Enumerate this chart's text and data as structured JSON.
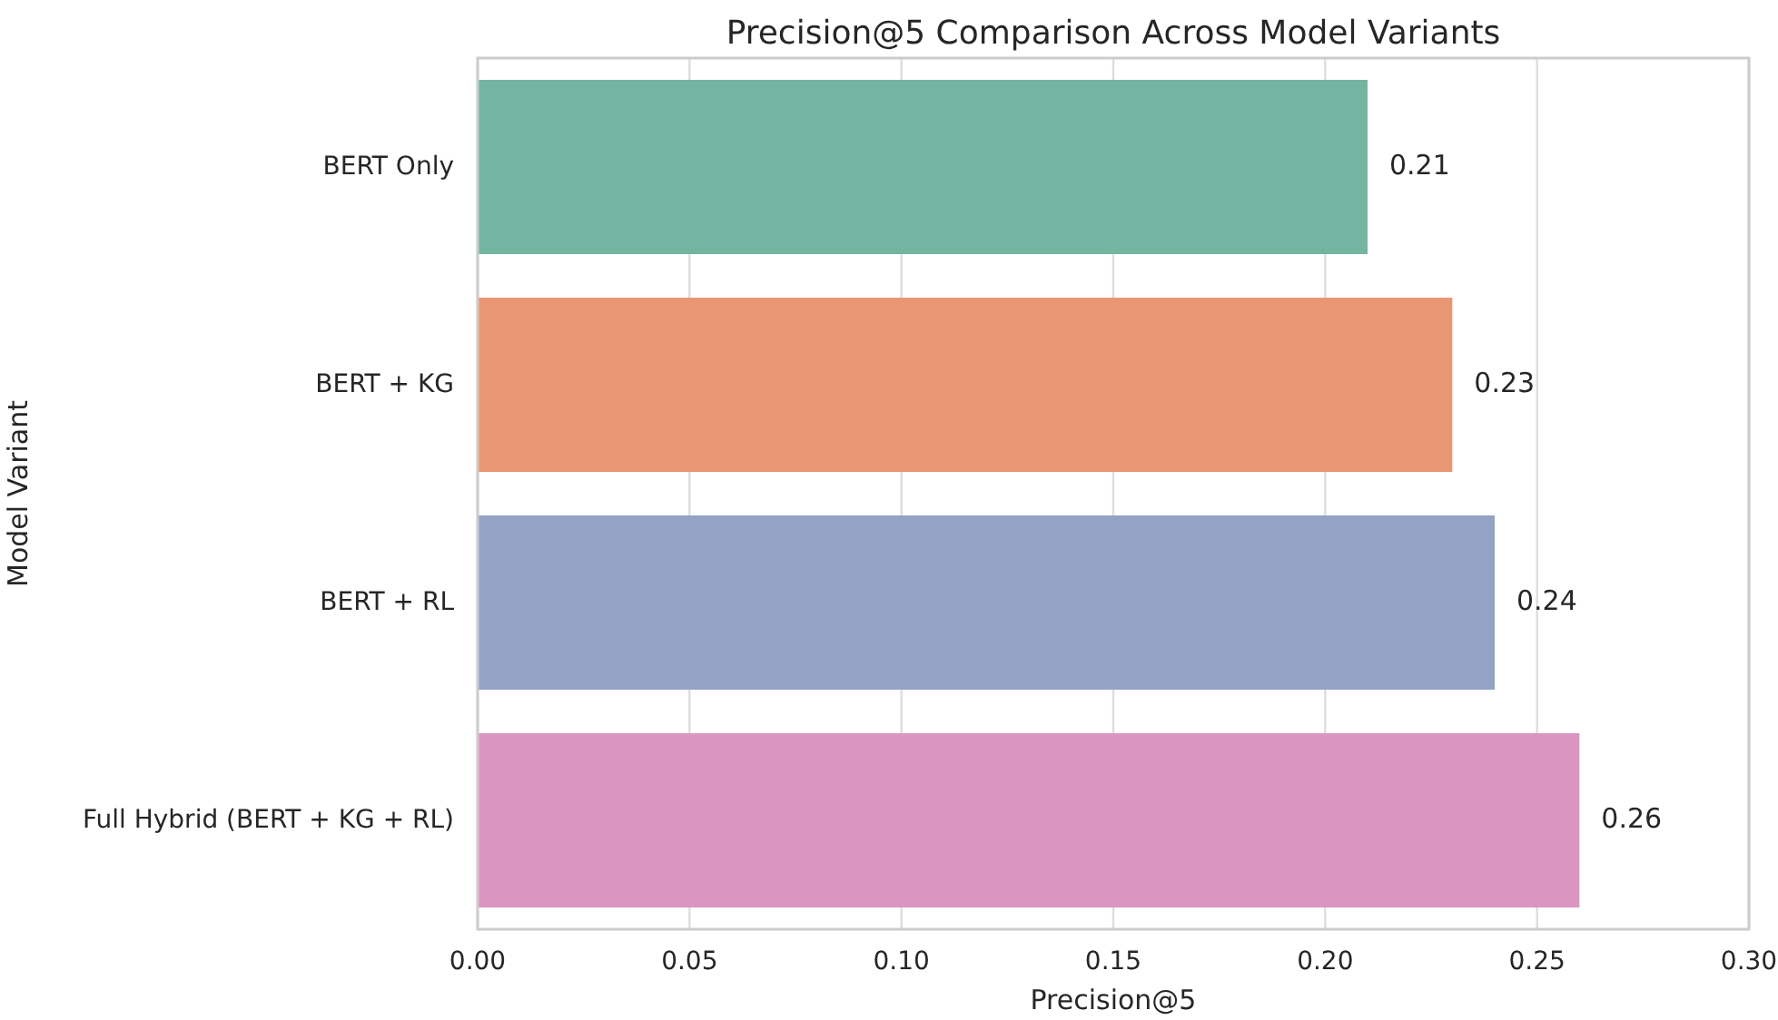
{
  "chart_data": {
    "type": "bar",
    "orientation": "horizontal",
    "title": "Precision@5 Comparison Across Model Variants",
    "xlabel": "Precision@5",
    "ylabel": "Model Variant",
    "categories": [
      "BERT Only",
      "BERT + KG",
      "BERT + RL",
      "Full Hybrid (BERT + KG + RL)"
    ],
    "values": [
      0.21,
      0.23,
      0.24,
      0.26
    ],
    "colors": [
      "#73b5a1",
      "#e89673",
      "#94a3c4",
      "#db95c1"
    ],
    "xlim": [
      0,
      0.3
    ],
    "xticks": [
      {
        "value": 0,
        "label": "0.00"
      },
      {
        "value": 0.05,
        "label": "0.05"
      },
      {
        "value": 0.1,
        "label": "0.10"
      },
      {
        "value": 0.15,
        "label": "0.15"
      },
      {
        "value": 0.2,
        "label": "0.20"
      },
      {
        "value": 0.25,
        "label": "0.25"
      },
      {
        "value": 0.3,
        "label": "0.30"
      }
    ],
    "grid": "x",
    "data_labels": true
  }
}
